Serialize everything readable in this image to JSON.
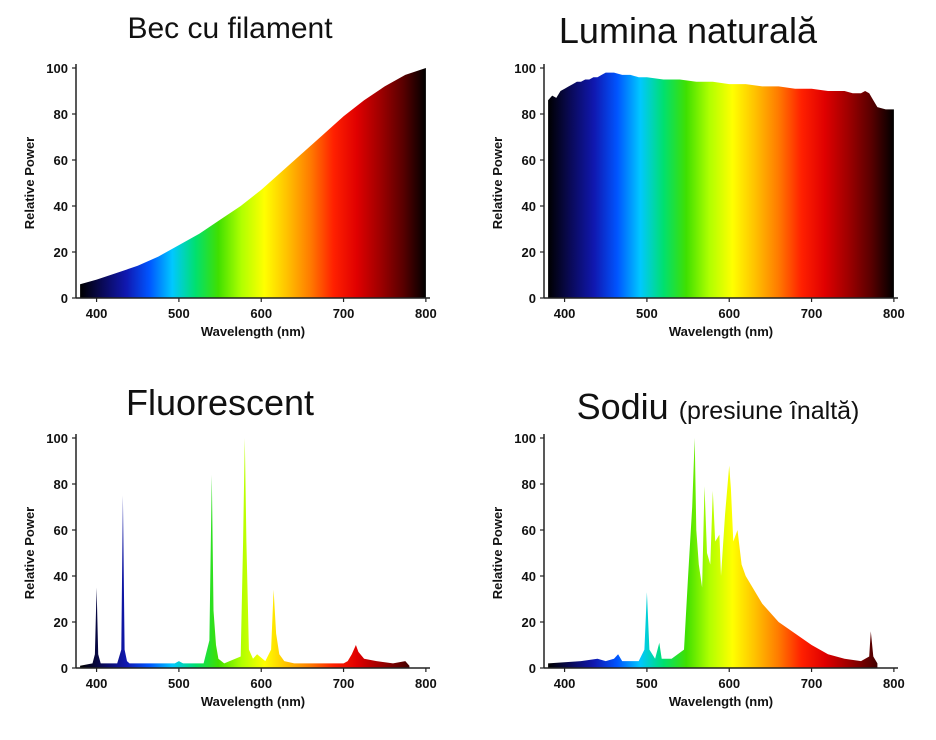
{
  "spectrum_colors": [
    "#000000",
    "#0a0a5a",
    "#1018b0",
    "#0055ff",
    "#00c8ff",
    "#00e070",
    "#40e000",
    "#b0ff00",
    "#ffff00",
    "#ffc000",
    "#ff7a00",
    "#ff2000",
    "#e00000",
    "#a00000",
    "#5a0000",
    "#000000"
  ],
  "chart_data": [
    {
      "type": "area",
      "title": "Bec cu filament",
      "xlabel": "Wavelength (nm)",
      "ylabel": "Relative Power",
      "xlim": [
        375,
        805
      ],
      "ylim": [
        0,
        100
      ],
      "xticks": [
        400,
        500,
        600,
        700,
        800
      ],
      "yticks": [
        0,
        20,
        40,
        60,
        80,
        100
      ],
      "x": [
        380,
        400,
        425,
        450,
        475,
        500,
        525,
        550,
        575,
        600,
        625,
        650,
        675,
        700,
        725,
        750,
        775,
        800
      ],
      "y": [
        6,
        8,
        11,
        14,
        18,
        23,
        28,
        34,
        40,
        47,
        55,
        63,
        71,
        79,
        86,
        92,
        97,
        100
      ]
    },
    {
      "type": "area",
      "title": "Lumina naturală",
      "xlabel": "Wavelength (nm)",
      "ylabel": "Relative Power",
      "xlim": [
        375,
        805
      ],
      "ylim": [
        0,
        100
      ],
      "xticks": [
        400,
        500,
        600,
        700,
        800
      ],
      "yticks": [
        0,
        20,
        40,
        60,
        80,
        100
      ],
      "x": [
        380,
        385,
        390,
        395,
        400,
        405,
        410,
        415,
        420,
        425,
        430,
        435,
        440,
        445,
        450,
        460,
        470,
        480,
        490,
        500,
        520,
        540,
        560,
        580,
        600,
        620,
        640,
        660,
        680,
        700,
        720,
        740,
        750,
        760,
        765,
        770,
        775,
        780,
        790,
        800
      ],
      "y": [
        86,
        88,
        87,
        90,
        91,
        92,
        93,
        94,
        94,
        95,
        95,
        96,
        96,
        97,
        98,
        98,
        97,
        97,
        96,
        96,
        95,
        95,
        94,
        94,
        93,
        93,
        92,
        92,
        91,
        91,
        90,
        90,
        89,
        89,
        90,
        89,
        86,
        83,
        82,
        82
      ]
    },
    {
      "type": "line",
      "title": "Fluorescent",
      "xlabel": "Wavelength (nm)",
      "ylabel": "Relative Power",
      "xlim": [
        375,
        805
      ],
      "ylim": [
        0,
        100
      ],
      "xticks": [
        400,
        500,
        600,
        700,
        800
      ],
      "yticks": [
        0,
        20,
        40,
        60,
        80,
        100
      ],
      "x": [
        380,
        395,
        398,
        400,
        402,
        405,
        425,
        430,
        432,
        434,
        437,
        440,
        450,
        480,
        495,
        500,
        505,
        530,
        537,
        540,
        542,
        545,
        548,
        555,
        575,
        578,
        580,
        582,
        585,
        590,
        595,
        605,
        612,
        615,
        618,
        622,
        628,
        640,
        680,
        700,
        705,
        710,
        715,
        718,
        725,
        740,
        760,
        775,
        780
      ],
      "y": [
        1,
        2,
        6,
        35,
        6,
        2,
        2,
        8,
        75,
        8,
        3,
        2,
        2,
        2,
        2,
        3,
        2,
        2,
        12,
        84,
        25,
        10,
        4,
        2,
        5,
        55,
        100,
        55,
        8,
        4,
        6,
        3,
        8,
        34,
        15,
        6,
        3,
        2,
        2,
        2,
        3,
        6,
        10,
        7,
        4,
        3,
        2,
        3,
        1
      ]
    },
    {
      "type": "line",
      "title": "Sodiu",
      "subtitle": "(presiune înaltă)",
      "xlabel": "Wavelength (nm)",
      "ylabel": "Relative Power",
      "xlim": [
        375,
        805
      ],
      "ylim": [
        0,
        100
      ],
      "xticks": [
        400,
        500,
        600,
        700,
        800
      ],
      "yticks": [
        0,
        20,
        40,
        60,
        80,
        100
      ],
      "x": [
        380,
        420,
        440,
        450,
        460,
        465,
        470,
        490,
        497,
        500,
        503,
        510,
        515,
        518,
        530,
        545,
        550,
        555,
        558,
        560,
        563,
        567,
        570,
        573,
        577,
        580,
        583,
        588,
        590,
        595,
        600,
        602,
        605,
        610,
        615,
        620,
        640,
        660,
        680,
        700,
        720,
        740,
        760,
        770,
        772,
        775,
        780
      ],
      "y": [
        2,
        3,
        4,
        3,
        4,
        6,
        3,
        3,
        8,
        33,
        8,
        4,
        11,
        4,
        4,
        8,
        40,
        70,
        100,
        60,
        45,
        35,
        79,
        50,
        45,
        77,
        55,
        58,
        40,
        67,
        88,
        78,
        55,
        60,
        45,
        40,
        28,
        20,
        15,
        10,
        6,
        4,
        3,
        5,
        16,
        5,
        2
      ]
    }
  ]
}
